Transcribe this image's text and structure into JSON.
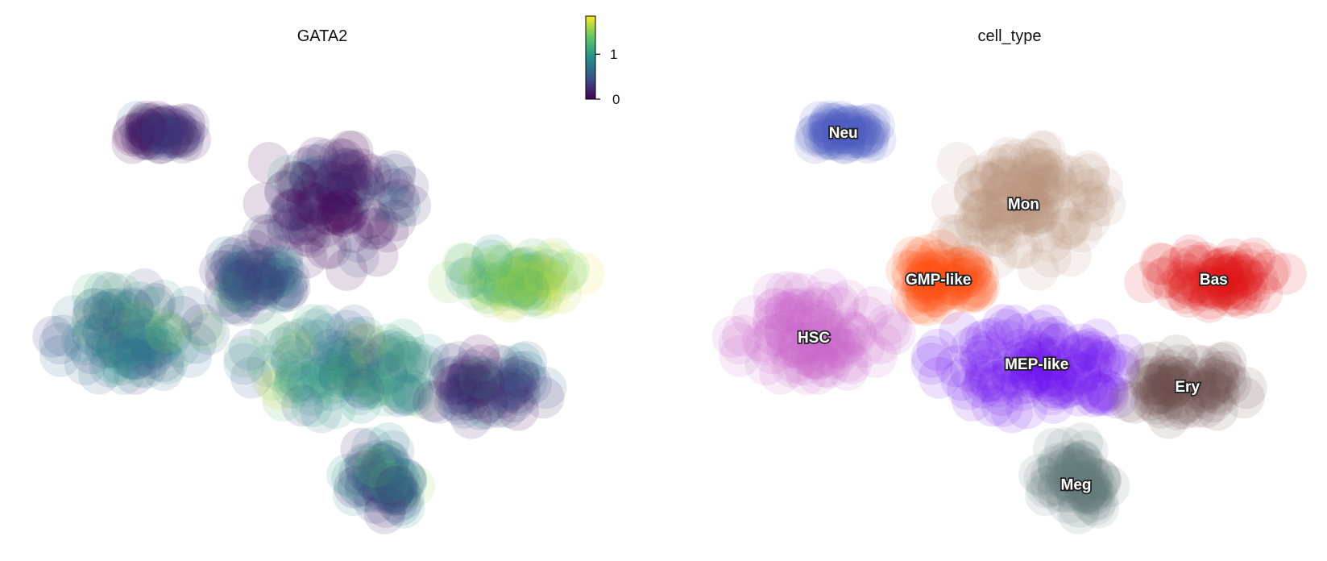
{
  "chart_data": [
    {
      "type": "scatter",
      "title": "GATA2",
      "colorbar": {
        "colormap": "viridis",
        "range": [
          0,
          1.85
        ],
        "ticks": [
          0,
          1
        ],
        "tick_labels": [
          "0",
          "1"
        ],
        "stops": [
          "#440154",
          "#3b528b",
          "#21918c",
          "#5ec962",
          "#fde725"
        ]
      },
      "xlabel": "",
      "ylabel": "",
      "grid": false,
      "groups": [
        {
          "cell_type": "Neu",
          "cx": 2.05,
          "cy": 8.8,
          "rx": 0.55,
          "ry": 0.35,
          "value": 0.08
        },
        {
          "cell_type": "Mon",
          "cx": 4.8,
          "cy": 7.2,
          "rx": 1.25,
          "ry": 1.45,
          "value": 0.08
        },
        {
          "cell_type": "GMP-like",
          "cx": 3.5,
          "cy": 5.5,
          "rx": 0.75,
          "ry": 0.65,
          "value": 0.5
        },
        {
          "cell_type": "HSC",
          "cx": 1.6,
          "cy": 4.2,
          "rx": 1.2,
          "ry": 1.15,
          "value": 0.65
        },
        {
          "cell_type": "MEP-like",
          "cx": 5.0,
          "cy": 3.6,
          "rx": 1.65,
          "ry": 1.1,
          "value": 0.8
        },
        {
          "cell_type": "Bas",
          "cx": 7.7,
          "cy": 5.5,
          "rx": 1.1,
          "ry": 0.65,
          "value": 1.35
        },
        {
          "cell_type": "Ery",
          "cx": 7.3,
          "cy": 3.1,
          "rx": 0.95,
          "ry": 0.75,
          "value": 0.2
        },
        {
          "cell_type": "Meg",
          "cx": 5.6,
          "cy": 0.9,
          "rx": 0.55,
          "ry": 1.05,
          "value": 0.55
        }
      ]
    },
    {
      "type": "scatter",
      "title": "cell_type",
      "xlabel": "",
      "ylabel": "",
      "grid": false,
      "legend": "on data",
      "groups": [
        {
          "label": "Neu",
          "color": "#4a5cc0",
          "cx": 2.05,
          "cy": 8.8,
          "rx": 0.55,
          "ry": 0.35
        },
        {
          "label": "Mon",
          "color": "#b88f7f",
          "cx": 4.8,
          "cy": 7.2,
          "rx": 1.25,
          "ry": 1.45
        },
        {
          "label": "GMP-like",
          "color": "#ff4d12",
          "cx": 3.5,
          "cy": 5.5,
          "rx": 0.75,
          "ry": 0.65
        },
        {
          "label": "HSC",
          "color": "#c663c6",
          "cx": 1.6,
          "cy": 4.2,
          "rx": 1.2,
          "ry": 1.15
        },
        {
          "label": "MEP-like",
          "color": "#6a0cf2",
          "cx": 5.0,
          "cy": 3.6,
          "rx": 1.65,
          "ry": 1.1
        },
        {
          "label": "Bas",
          "color": "#e31414",
          "cx": 7.7,
          "cy": 5.5,
          "rx": 1.1,
          "ry": 0.65
        },
        {
          "label": "Ery",
          "color": "#6e4d4d",
          "cx": 7.3,
          "cy": 3.1,
          "rx": 0.95,
          "ry": 0.75
        },
        {
          "label": "Meg",
          "color": "#617f7f",
          "cx": 5.6,
          "cy": 0.9,
          "rx": 0.55,
          "ry": 1.05
        }
      ]
    }
  ]
}
